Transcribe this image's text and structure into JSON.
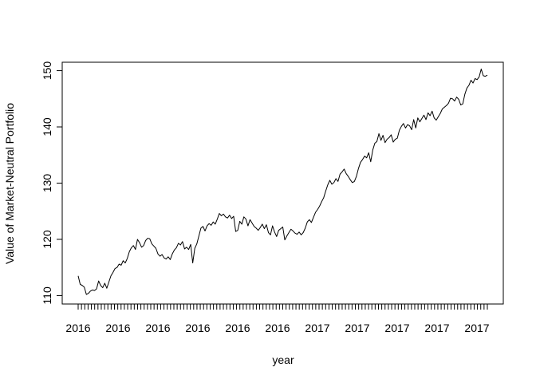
{
  "chart_data": {
    "type": "line",
    "title": "",
    "xlabel": "year",
    "ylabel": "Value of Market-Neutral Portfolio",
    "ylim": [
      108.5,
      151.5
    ],
    "yticks": [
      110,
      120,
      130,
      140,
      150
    ],
    "xtick_labels": [
      "2016",
      "2016",
      "2016",
      "2016",
      "2016",
      "2016",
      "2017",
      "2017",
      "2017",
      "2017",
      "2017"
    ],
    "minor_tick_count": 125,
    "grid": false,
    "legend": "none",
    "series": [
      {
        "values": [
          113.5,
          112.0,
          111.8,
          111.5,
          110.2,
          110.4,
          110.8,
          111.0,
          110.9,
          111.2,
          112.6,
          111.8,
          111.4,
          112.2,
          111.3,
          112.4,
          113.5,
          114.1,
          114.8,
          115.0,
          115.6,
          115.4,
          116.2,
          115.8,
          116.6,
          117.8,
          118.5,
          118.9,
          118.2,
          120.0,
          119.4,
          118.6,
          118.9,
          119.8,
          120.2,
          120.1,
          119.2,
          118.8,
          118.4,
          117.4,
          117.0,
          117.3,
          116.7,
          116.5,
          116.9,
          116.4,
          117.4,
          118.1,
          118.5,
          119.3,
          119.0,
          119.6,
          118.3,
          118.6,
          118.2,
          119.1,
          115.8,
          118.4,
          119.2,
          120.6,
          122.0,
          122.3,
          121.5,
          122.4,
          122.8,
          122.5,
          123.1,
          122.7,
          123.6,
          124.6,
          124.2,
          124.5,
          124.0,
          123.8,
          124.3,
          123.7,
          124.1,
          121.4,
          121.6,
          123.2,
          122.7,
          124.0,
          123.6,
          122.4,
          123.5,
          122.9,
          122.3,
          122.0,
          121.6,
          122.1,
          122.7,
          121.9,
          122.6,
          121.2,
          120.8,
          122.4,
          121.3,
          120.5,
          121.6,
          121.9,
          122.2,
          119.9,
          120.6,
          121.2,
          121.8,
          121.5,
          121.1,
          120.9,
          121.3,
          120.8,
          121.2,
          122.0,
          123.1,
          123.5,
          123.0,
          123.9,
          124.8,
          125.3,
          125.9,
          126.7,
          127.4,
          128.6,
          129.7,
          130.5,
          129.8,
          130.1,
          130.8,
          130.3,
          131.6,
          132.0,
          132.5,
          131.7,
          131.2,
          130.6,
          130.1,
          130.3,
          131.2,
          132.6,
          133.7,
          134.2,
          134.8,
          134.5,
          135.4,
          133.8,
          135.9,
          137.1,
          137.4,
          138.8,
          137.6,
          138.5,
          137.2,
          137.8,
          138.1,
          138.6,
          137.3,
          137.8,
          138.0,
          139.4,
          140.1,
          140.6,
          139.8,
          140.4,
          140.2,
          139.5,
          141.3,
          139.8,
          141.6,
          140.9,
          141.5,
          142.1,
          141.3,
          142.5,
          142.0,
          142.8,
          141.6,
          141.2,
          141.8,
          142.4,
          143.2,
          143.5,
          143.8,
          144.2,
          145.1,
          145.0,
          144.6,
          145.3,
          144.9,
          143.9,
          144.1,
          145.8,
          146.9,
          147.4,
          148.3,
          147.8,
          148.6,
          148.4,
          148.9,
          150.3,
          149.1,
          149.0,
          149.2
        ]
      }
    ]
  }
}
